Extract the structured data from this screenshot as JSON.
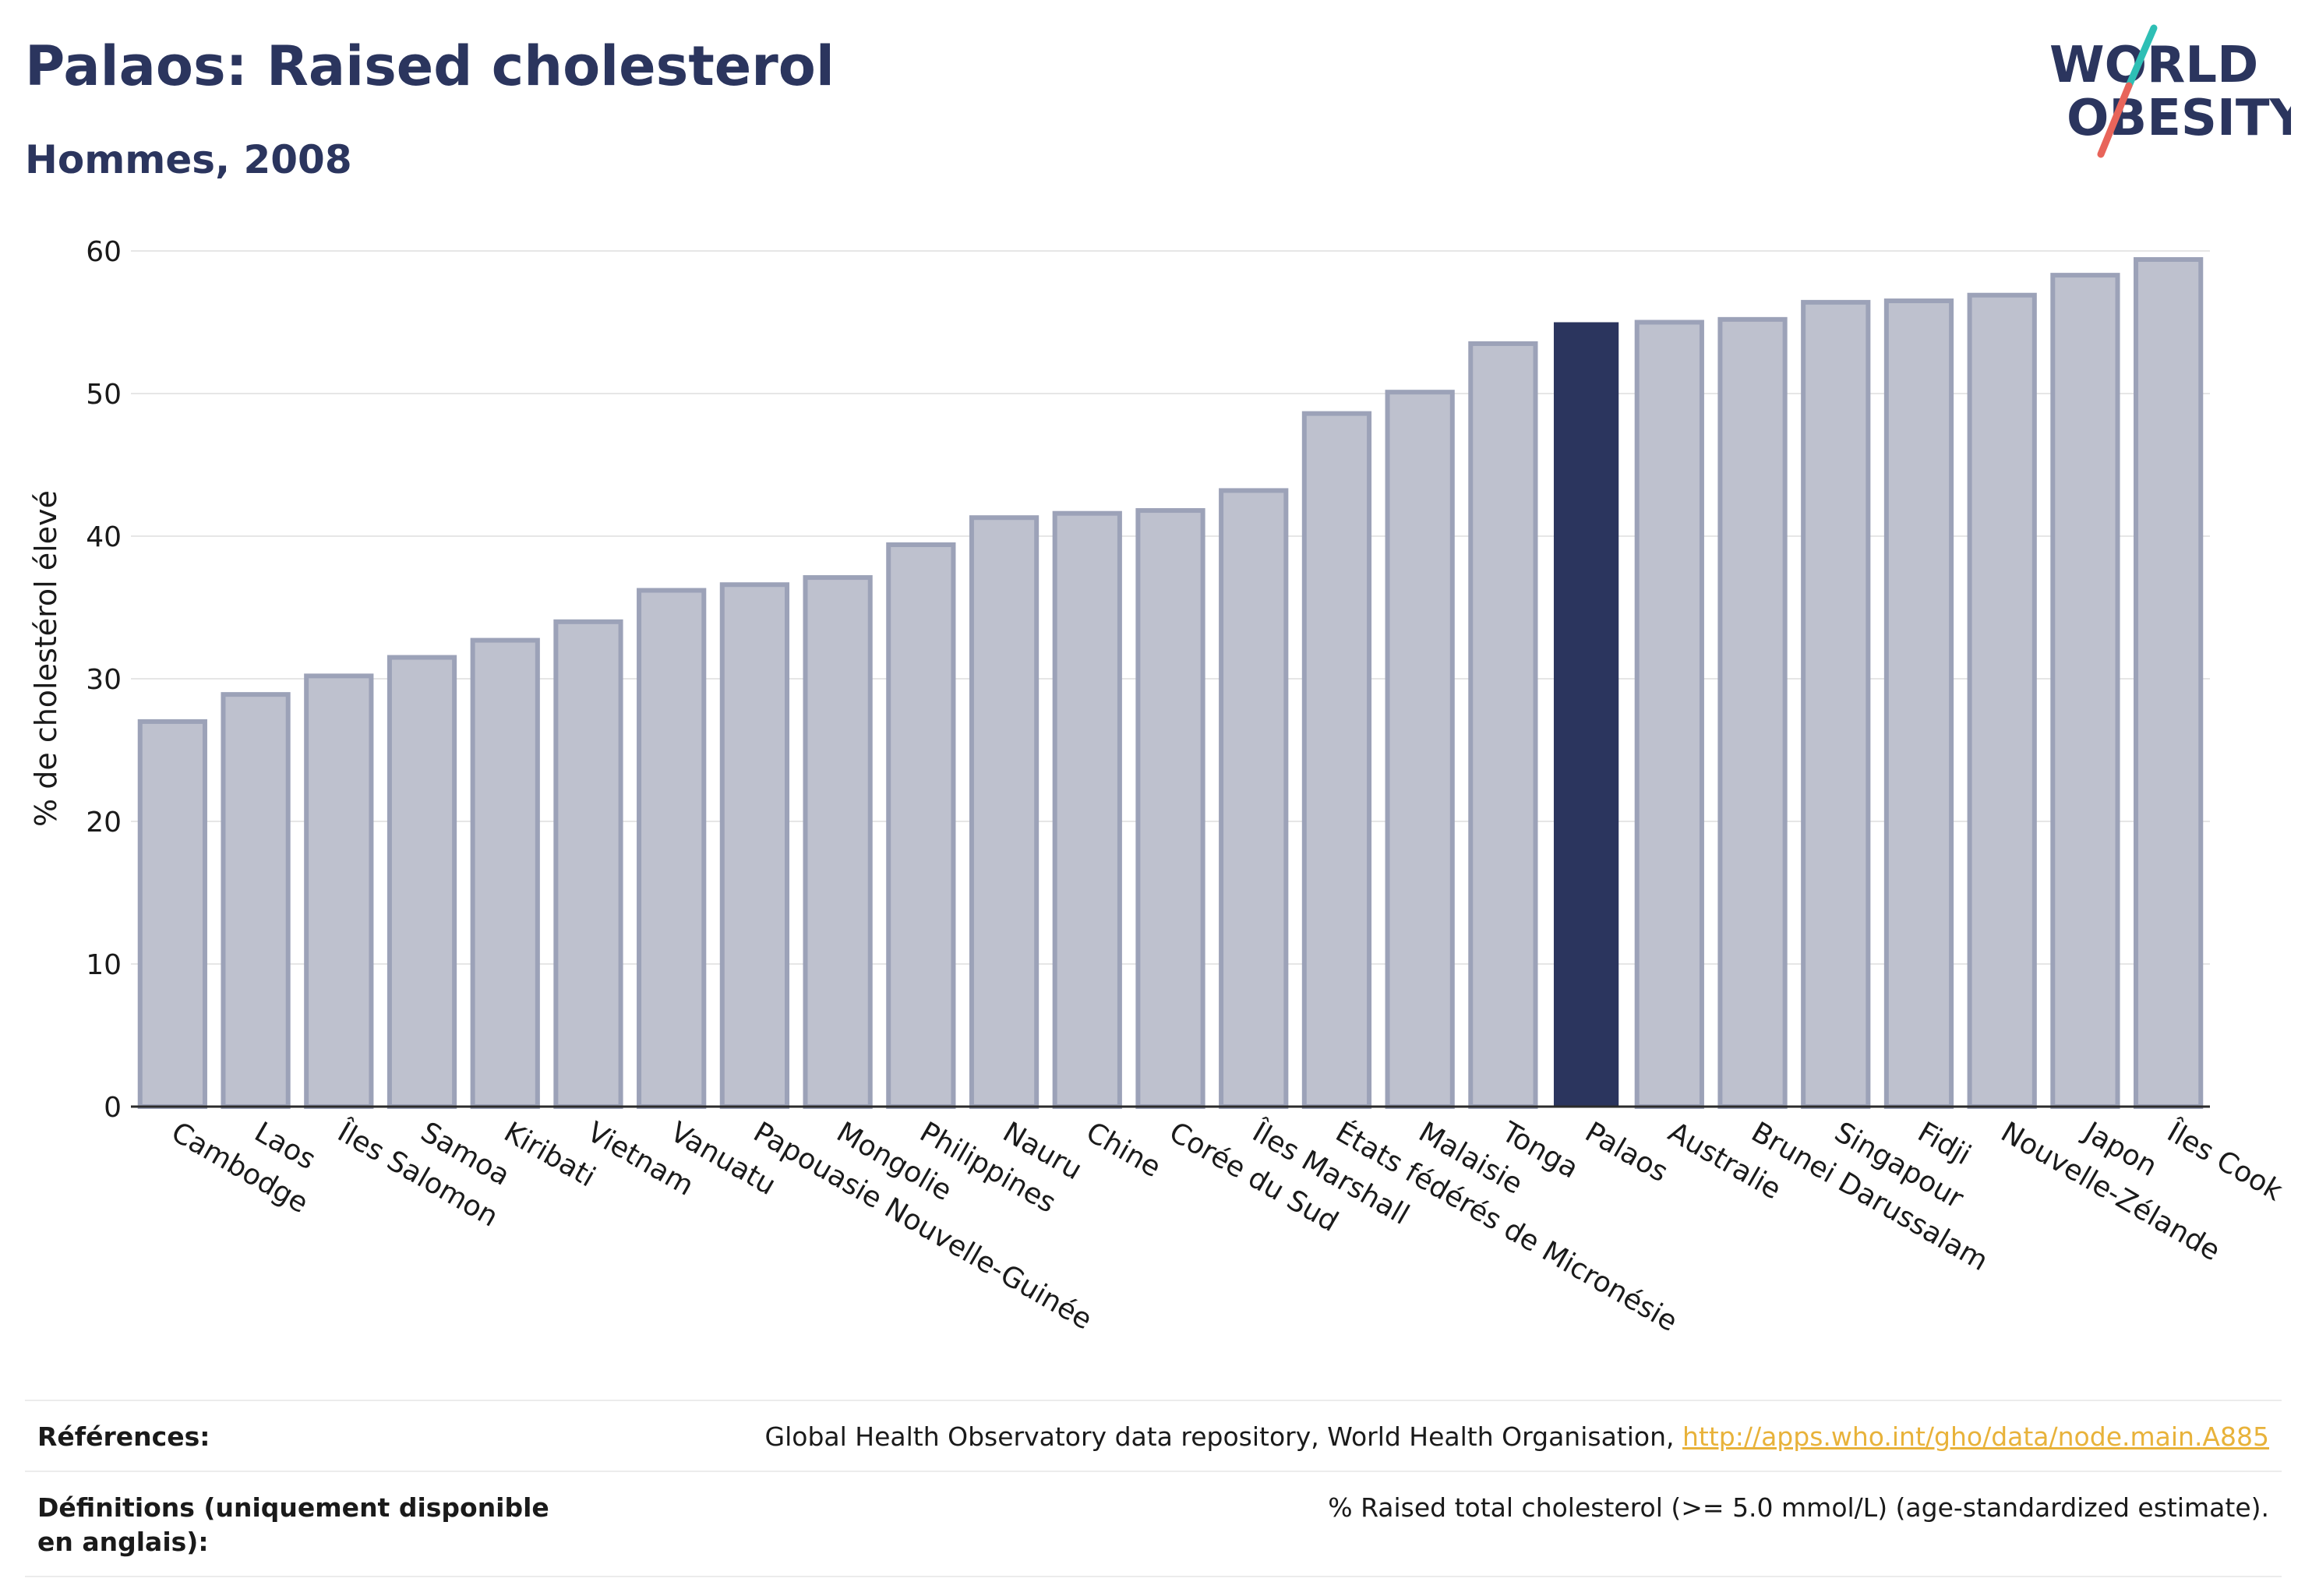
{
  "header": {
    "title": "Palaos: Raised cholesterol",
    "subtitle": "Hommes, 2008"
  },
  "logo": {
    "line1": "WORLD",
    "line2": "OBESITY"
  },
  "colors": {
    "highlight_bar": "#2b355e",
    "default_bar": "#bec1ce",
    "default_bar_border": "#9ca2b8",
    "text": "#2b355e",
    "gridline": "#e6e6e6",
    "link": "#e8b23a"
  },
  "chart_data": {
    "type": "bar",
    "ylabel": "% de cholestérol élevé",
    "ylim": [
      0,
      60
    ],
    "yticks": [
      0,
      10,
      20,
      30,
      40,
      50,
      60
    ],
    "grid": true,
    "highlight": "Palaos",
    "categories": [
      "Cambodge",
      "Laos",
      "Îles Salomon",
      "Samoa",
      "Kiribati",
      "Vietnam",
      "Vanuatu",
      "Papouasie Nouvelle-Guinée",
      "Mongolie",
      "Philippines",
      "Nauru",
      "Chine",
      "Corée du Sud",
      "Îles Marshall",
      "États fédérés de Micronésie",
      "Malaisie",
      "Tonga",
      "Palaos",
      "Australie",
      "Brunei Darussalam",
      "Singapour",
      "Fidji",
      "Nouvelle-Zélande",
      "Japon",
      "Îles Cook"
    ],
    "values": [
      27.0,
      28.9,
      30.2,
      31.5,
      32.7,
      34.0,
      36.2,
      36.6,
      37.1,
      39.4,
      41.3,
      41.6,
      41.8,
      43.2,
      48.6,
      50.1,
      53.5,
      55.0,
      55.0,
      55.2,
      56.4,
      56.5,
      56.9,
      58.3,
      59.4
    ]
  },
  "footer": {
    "references_label": "Références:",
    "references_text": "Global Health Observatory data repository, World Health Organisation, ",
    "references_link": "http://apps.who.int/gho/data/node.main.A885",
    "definitions_label": "Définitions (uniquement disponible en anglais):",
    "definitions_text": "% Raised total cholesterol (>= 5.0 mmol/L) (age-standardized estimate)."
  }
}
